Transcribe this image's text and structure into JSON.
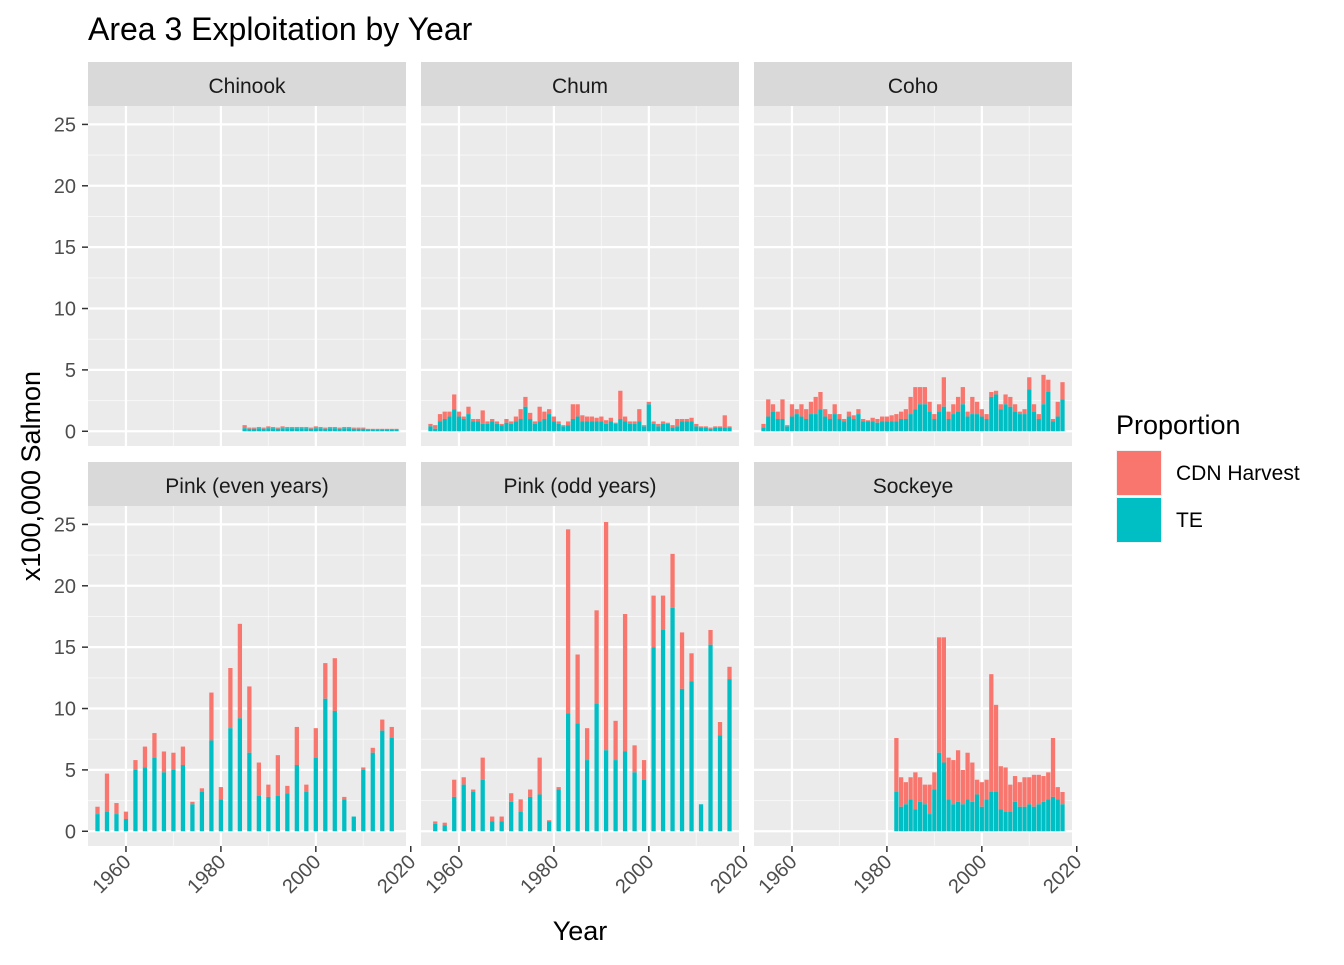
{
  "chart_data": {
    "type": "bar",
    "stacked": true,
    "faceted": true,
    "title": "Area 3 Exploitation by Year",
    "xlabel": "Year",
    "ylabel": "x100,000 Salmon",
    "xlim": [
      1952,
      2019
    ],
    "ylim": [
      -1.2,
      26.5
    ],
    "x_ticks": [
      1960,
      1980,
      2000,
      2020
    ],
    "y_ticks": [
      0,
      5,
      10,
      15,
      20,
      25
    ],
    "grid": true,
    "legend": {
      "title": "Proportion",
      "position": "right",
      "entries": [
        {
          "name": "CDN Harvest",
          "color": "#F8766D"
        },
        {
          "name": "TE",
          "color": "#00BFC4"
        }
      ]
    },
    "colors": {
      "CDN Harvest": "#F8766D",
      "TE": "#00BFC4",
      "panel": "#EBEBEB",
      "strip": "#D9D9D9",
      "grid": "#FFFFFF"
    },
    "panels": [
      {
        "name": "Chinook",
        "years": [
          1985,
          1986,
          1987,
          1988,
          1989,
          1990,
          1991,
          1992,
          1993,
          1994,
          1995,
          1996,
          1997,
          1998,
          1999,
          2000,
          2001,
          2002,
          2003,
          2004,
          2005,
          2006,
          2007,
          2008,
          2009,
          2010,
          2011,
          2012,
          2013,
          2014,
          2015,
          2016,
          2017
        ],
        "TE": [
          0.25,
          0.2,
          0.2,
          0.25,
          0.2,
          0.25,
          0.25,
          0.2,
          0.25,
          0.25,
          0.25,
          0.25,
          0.25,
          0.25,
          0.2,
          0.25,
          0.25,
          0.2,
          0.25,
          0.25,
          0.2,
          0.25,
          0.25,
          0.2,
          0.2,
          0.2,
          0.15,
          0.15,
          0.15,
          0.15,
          0.15,
          0.15,
          0.15
        ],
        "CDN Harvest": [
          0.25,
          0.1,
          0.1,
          0.1,
          0.1,
          0.15,
          0.1,
          0.1,
          0.15,
          0.1,
          0.1,
          0.1,
          0.1,
          0.1,
          0.1,
          0.15,
          0.1,
          0.1,
          0.1,
          0.1,
          0.1,
          0.1,
          0.1,
          0.1,
          0.1,
          0.1,
          0.05,
          0.05,
          0.05,
          0.05,
          0.05,
          0.05,
          0.05
        ]
      },
      {
        "name": "Chum",
        "years": [
          1954,
          1955,
          1956,
          1957,
          1958,
          1959,
          1960,
          1961,
          1962,
          1963,
          1964,
          1965,
          1966,
          1967,
          1968,
          1969,
          1970,
          1971,
          1972,
          1973,
          1974,
          1975,
          1976,
          1977,
          1978,
          1979,
          1980,
          1981,
          1982,
          1983,
          1984,
          1985,
          1986,
          1987,
          1988,
          1989,
          1990,
          1991,
          1992,
          1993,
          1994,
          1995,
          1996,
          1997,
          1998,
          1999,
          2000,
          2001,
          2002,
          2003,
          2004,
          2005,
          2006,
          2007,
          2008,
          2009,
          2010,
          2011,
          2012,
          2013,
          2014,
          2015,
          2016,
          2017
        ],
        "TE": [
          0.4,
          0.2,
          0.8,
          1.0,
          1.2,
          1.8,
          1.2,
          1.0,
          1.4,
          0.8,
          0.8,
          0.6,
          0.6,
          0.8,
          0.6,
          0.5,
          0.7,
          0.6,
          0.8,
          1.0,
          2.0,
          1.0,
          0.6,
          0.8,
          1.0,
          1.4,
          0.8,
          0.6,
          0.4,
          0.5,
          1.0,
          1.2,
          0.8,
          0.8,
          0.8,
          0.8,
          0.8,
          0.6,
          0.8,
          0.6,
          1.0,
          0.8,
          0.6,
          0.6,
          0.8,
          0.4,
          2.2,
          0.6,
          0.4,
          0.6,
          0.6,
          0.3,
          0.4,
          0.8,
          0.8,
          0.8,
          0.4,
          0.3,
          0.3,
          0.2,
          0.3,
          0.3,
          0.3,
          0.3
        ],
        "CDN Harvest": [
          0.2,
          0.3,
          0.6,
          0.6,
          0.4,
          1.2,
          0.4,
          0.2,
          0.6,
          0.2,
          0.2,
          1.1,
          0.2,
          0.2,
          0.2,
          0.1,
          0.3,
          0.2,
          0.4,
          0.8,
          0.8,
          0.5,
          0.2,
          1.2,
          0.6,
          0.4,
          0.4,
          0.2,
          0.1,
          0.3,
          1.2,
          1.0,
          0.5,
          0.4,
          0.4,
          0.3,
          0.4,
          0.3,
          0.3,
          0.1,
          2.3,
          0.4,
          0.2,
          0.2,
          1.0,
          0.1,
          0.2,
          0.2,
          0.2,
          0.2,
          0.1,
          0.2,
          0.6,
          0.2,
          0.2,
          0.3,
          0.2,
          0.1,
          0.1,
          0.1,
          0.1,
          0.1,
          1.0,
          0.1
        ]
      },
      {
        "name": "Coho",
        "years": [
          1954,
          1955,
          1956,
          1957,
          1958,
          1959,
          1960,
          1961,
          1962,
          1963,
          1964,
          1965,
          1966,
          1967,
          1968,
          1969,
          1970,
          1971,
          1972,
          1973,
          1974,
          1975,
          1976,
          1977,
          1978,
          1979,
          1980,
          1981,
          1982,
          1983,
          1984,
          1985,
          1986,
          1987,
          1988,
          1989,
          1990,
          1991,
          1992,
          1993,
          1994,
          1995,
          1996,
          1997,
          1998,
          1999,
          2000,
          2001,
          2002,
          2003,
          2004,
          2005,
          2006,
          2007,
          2008,
          2009,
          2010,
          2011,
          2012,
          2013,
          2014,
          2015,
          2016,
          2017
        ],
        "TE": [
          0.3,
          1.2,
          1.6,
          1.0,
          1.0,
          0.4,
          1.2,
          1.4,
          1.2,
          1.0,
          1.4,
          1.4,
          1.8,
          1.2,
          1.0,
          1.4,
          1.0,
          0.8,
          1.2,
          1.0,
          1.4,
          0.8,
          0.8,
          0.8,
          0.7,
          0.8,
          0.8,
          0.8,
          0.8,
          1.0,
          1.0,
          1.4,
          1.8,
          2.2,
          2.2,
          1.6,
          1.0,
          1.6,
          2.0,
          1.0,
          1.4,
          1.6,
          2.2,
          1.2,
          1.4,
          1.4,
          1.2,
          1.0,
          2.8,
          3.0,
          1.8,
          2.2,
          2.0,
          1.6,
          1.4,
          1.4,
          3.4,
          1.6,
          1.0,
          2.2,
          3.2,
          0.8,
          1.2,
          2.6
        ],
        "CDN Harvest": [
          0.3,
          1.4,
          0.6,
          0.6,
          1.6,
          0.1,
          1.0,
          0.4,
          1.0,
          0.8,
          1.0,
          1.4,
          1.4,
          0.6,
          0.4,
          0.8,
          0.4,
          0.2,
          0.4,
          0.3,
          0.4,
          0.2,
          0.1,
          0.3,
          0.3,
          0.4,
          0.4,
          0.5,
          0.6,
          0.6,
          0.8,
          1.4,
          1.8,
          1.4,
          1.4,
          0.8,
          0.4,
          0.6,
          2.4,
          0.6,
          0.8,
          1.2,
          1.4,
          0.4,
          1.4,
          1.0,
          0.6,
          0.4,
          0.4,
          0.3,
          0.4,
          0.8,
          0.8,
          0.6,
          0.2,
          0.4,
          1.0,
          0.6,
          0.4,
          2.4,
          1.0,
          0.2,
          1.2,
          1.4
        ]
      },
      {
        "name": "Pink (even years)",
        "years": [
          1954,
          1956,
          1958,
          1960,
          1962,
          1964,
          1966,
          1968,
          1970,
          1972,
          1974,
          1976,
          1978,
          1980,
          1982,
          1984,
          1986,
          1988,
          1990,
          1992,
          1994,
          1996,
          1998,
          2000,
          2002,
          2004,
          2006,
          2008,
          2010,
          2012,
          2014,
          2016
        ],
        "TE": [
          1.4,
          1.6,
          1.4,
          1.0,
          5.0,
          5.2,
          6.0,
          4.8,
          5.0,
          5.4,
          2.2,
          3.2,
          7.4,
          2.6,
          8.4,
          9.2,
          6.4,
          2.9,
          2.8,
          2.9,
          3.1,
          5.4,
          3.2,
          6.0,
          10.8,
          9.8,
          2.6,
          1.2,
          5.0,
          6.4,
          8.2,
          7.6
        ],
        "CDN Harvest": [
          0.6,
          3.1,
          0.9,
          0.6,
          0.8,
          1.7,
          2.0,
          1.7,
          1.4,
          1.5,
          0.2,
          0.3,
          3.9,
          1.0,
          4.9,
          7.7,
          5.4,
          2.7,
          1.0,
          3.3,
          0.6,
          3.1,
          0.6,
          2.4,
          2.9,
          4.3,
          0.2,
          0.0,
          0.2,
          0.4,
          0.9,
          0.9
        ]
      },
      {
        "name": "Pink (odd years)",
        "years": [
          1955,
          1957,
          1959,
          1961,
          1963,
          1965,
          1967,
          1969,
          1971,
          1973,
          1975,
          1977,
          1979,
          1981,
          1983,
          1985,
          1987,
          1989,
          1991,
          1993,
          1995,
          1997,
          1999,
          2001,
          2003,
          2005,
          2007,
          2009,
          2011,
          2013,
          2015,
          2017
        ],
        "TE": [
          0.6,
          0.5,
          2.8,
          3.8,
          3.2,
          4.2,
          0.8,
          0.8,
          2.4,
          1.6,
          2.8,
          3.0,
          0.8,
          3.4,
          9.6,
          8.8,
          5.8,
          10.4,
          6.6,
          5.8,
          6.5,
          4.8,
          4.2,
          15.0,
          16.4,
          18.2,
          11.6,
          12.2,
          2.2,
          15.2,
          7.8,
          12.4
        ],
        "CDN Harvest": [
          0.2,
          0.2,
          1.4,
          0.6,
          0.2,
          1.8,
          0.4,
          0.4,
          0.7,
          1.0,
          0.6,
          3.0,
          0.1,
          0.2,
          15.0,
          5.6,
          2.6,
          7.6,
          18.6,
          3.2,
          11.2,
          2.2,
          1.6,
          4.2,
          2.8,
          4.4,
          4.6,
          2.3,
          0.0,
          1.2,
          1.1,
          1.0
        ]
      },
      {
        "name": "Sockeye",
        "years": [
          1982,
          1983,
          1984,
          1985,
          1986,
          1987,
          1988,
          1989,
          1990,
          1991,
          1992,
          1993,
          1994,
          1995,
          1996,
          1997,
          1998,
          1999,
          2000,
          2001,
          2002,
          2003,
          2004,
          2005,
          2006,
          2007,
          2008,
          2009,
          2010,
          2011,
          2012,
          2013,
          2014,
          2015,
          2016,
          2017
        ],
        "TE": [
          3.2,
          2.0,
          2.2,
          2.6,
          1.8,
          2.4,
          2.2,
          1.4,
          3.4,
          6.4,
          5.6,
          2.6,
          2.2,
          2.4,
          2.2,
          2.6,
          2.4,
          3.0,
          2.0,
          2.6,
          3.2,
          3.2,
          1.8,
          1.6,
          1.6,
          2.4,
          2.0,
          2.0,
          2.2,
          2.0,
          2.2,
          2.4,
          2.6,
          2.8,
          2.6,
          2.2
        ],
        "CDN Harvest": [
          4.4,
          2.4,
          1.8,
          1.8,
          3.0,
          2.0,
          1.6,
          2.4,
          1.4,
          9.4,
          10.2,
          3.4,
          3.6,
          4.2,
          2.8,
          3.8,
          3.2,
          1.2,
          2.0,
          1.6,
          9.6,
          7.1,
          3.5,
          3.6,
          2.2,
          2.1,
          2.0,
          2.4,
          2.2,
          2.6,
          2.4,
          2.1,
          2.2,
          4.8,
          1.0,
          1.0
        ]
      }
    ]
  }
}
